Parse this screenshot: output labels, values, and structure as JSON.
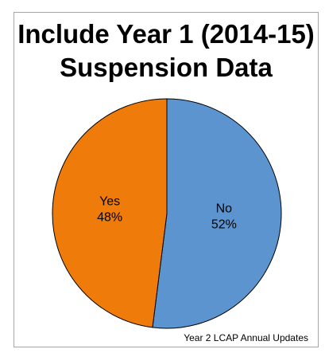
{
  "chart_data": {
    "type": "pie",
    "title_lines": [
      "Include Year 1 (2014-15)",
      "Suspension Data"
    ],
    "slices": [
      {
        "label": "No",
        "value": 52,
        "value_label": "52%",
        "color": "#5b94cf"
      },
      {
        "label": "Yes",
        "value": 48,
        "value_label": "48%",
        "color": "#ef7b0b"
      }
    ],
    "start": "12 o'clock",
    "direction": "clockwise",
    "edge_color": "#000000"
  },
  "footnote": "Year 2 LCAP Annual Updates"
}
